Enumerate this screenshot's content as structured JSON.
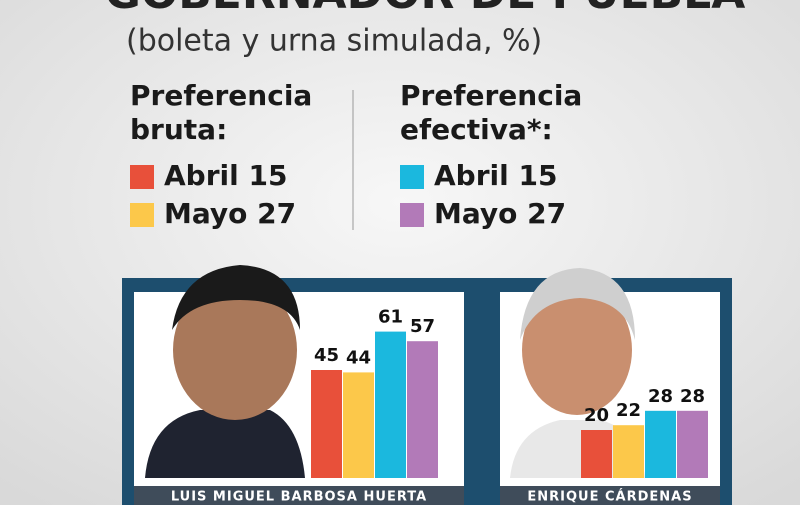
{
  "title": "GOBERNADOR DE PUEBLA",
  "subtitle": "(boleta y urna simulada, %)",
  "legend_groups": [
    "Preferencia bruta:",
    "Preferencia efectiva*:"
  ],
  "chart_data": [
    {
      "type": "bar",
      "label": "LUIS MIGUEL BARBOSA HUERTA",
      "ylim": [
        0,
        70
      ],
      "series": [
        {
          "name": "Abril 15",
          "color": "#e8503a",
          "values": [
            45
          ]
        },
        {
          "name": "Mayo 27",
          "color": "#fcc84a",
          "values": [
            44
          ]
        },
        {
          "name": "Abril 15",
          "color": "#1bb8de",
          "values": [
            61
          ]
        },
        {
          "name": "Mayo 27",
          "color": "#b27ab8",
          "values": [
            57
          ]
        }
      ]
    },
    {
      "type": "bar",
      "label": "ENRIQUE CÁRDENAS",
      "ylim": [
        0,
        70
      ],
      "series": [
        {
          "name": "Abril 15",
          "color": "#e8503a",
          "values": [
            20
          ]
        },
        {
          "name": "Mayo 27",
          "color": "#fcc84a",
          "values": [
            22
          ]
        },
        {
          "name": "Abril 15",
          "color": "#1bb8de",
          "values": [
            28
          ]
        },
        {
          "name": "Mayo 27",
          "color": "#b27ab8",
          "values": [
            28
          ]
        }
      ]
    }
  ]
}
